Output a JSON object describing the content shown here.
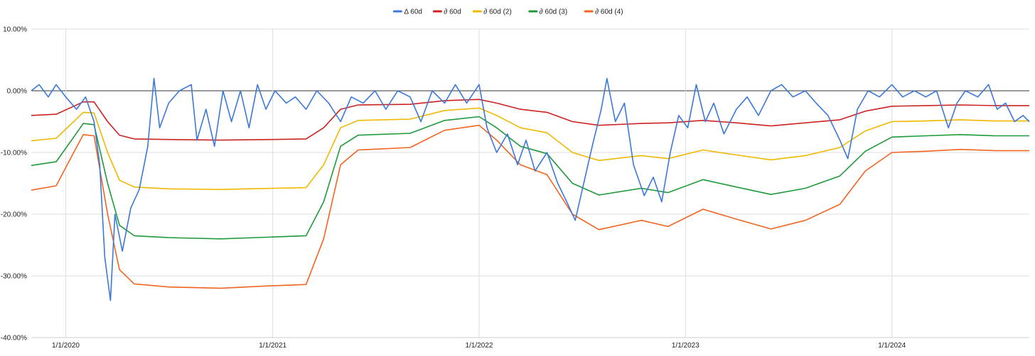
{
  "chart_data": {
    "type": "line",
    "title": "",
    "xlabel": "",
    "ylabel": "",
    "ylim": [
      -0.4,
      0.1
    ],
    "xlim": [
      "2019-11-01",
      "2024-08-31"
    ],
    "grid": true,
    "legend_position": "top-center",
    "y_ticks": [
      "10.00%",
      "0.00%",
      "-10.00%",
      "-20.00%",
      "-30.00%",
      "-40.00%"
    ],
    "y_tick_values": [
      0.1,
      0.0,
      -0.1,
      -0.2,
      -0.3,
      -0.4
    ],
    "x_ticks": [
      "1/1/2020",
      "1/1/2021",
      "1/1/2022",
      "1/1/2023",
      "1/1/2024"
    ],
    "x_tick_dates": [
      "2020-01-01",
      "2021-01-01",
      "2022-01-01",
      "2023-01-01",
      "2024-01-01"
    ],
    "zero_line": true,
    "series": [
      {
        "name": "Δ 60d",
        "color": "#3b78d8",
        "points": [
          [
            "2019-11-01",
            0.0
          ],
          [
            "2019-11-15",
            0.01
          ],
          [
            "2019-12-01",
            -0.01
          ],
          [
            "2019-12-15",
            0.01
          ],
          [
            "2020-01-01",
            -0.01
          ],
          [
            "2020-01-20",
            -0.03
          ],
          [
            "2020-02-05",
            -0.01
          ],
          [
            "2020-02-20",
            -0.05
          ],
          [
            "2020-03-01",
            -0.12
          ],
          [
            "2020-03-10",
            -0.27
          ],
          [
            "2020-03-20",
            -0.34
          ],
          [
            "2020-03-28",
            -0.2
          ],
          [
            "2020-04-10",
            -0.26
          ],
          [
            "2020-04-25",
            -0.19
          ],
          [
            "2020-05-10",
            -0.16
          ],
          [
            "2020-05-25",
            -0.09
          ],
          [
            "2020-06-05",
            0.02
          ],
          [
            "2020-06-15",
            -0.06
          ],
          [
            "2020-07-01",
            -0.02
          ],
          [
            "2020-07-20",
            0.0
          ],
          [
            "2020-08-10",
            0.01
          ],
          [
            "2020-08-20",
            -0.08
          ],
          [
            "2020-09-05",
            -0.03
          ],
          [
            "2020-09-20",
            -0.09
          ],
          [
            "2020-10-05",
            0.0
          ],
          [
            "2020-10-20",
            -0.05
          ],
          [
            "2020-11-05",
            0.0
          ],
          [
            "2020-11-20",
            -0.06
          ],
          [
            "2020-12-05",
            0.01
          ],
          [
            "2020-12-20",
            -0.03
          ],
          [
            "2021-01-05",
            0.0
          ],
          [
            "2021-01-25",
            -0.02
          ],
          [
            "2021-02-10",
            -0.01
          ],
          [
            "2021-03-01",
            -0.03
          ],
          [
            "2021-03-20",
            0.0
          ],
          [
            "2021-04-10",
            -0.02
          ],
          [
            "2021-05-01",
            -0.05
          ],
          [
            "2021-05-20",
            -0.01
          ],
          [
            "2021-06-10",
            -0.02
          ],
          [
            "2021-07-01",
            0.0
          ],
          [
            "2021-07-20",
            -0.03
          ],
          [
            "2021-08-10",
            0.0
          ],
          [
            "2021-09-01",
            -0.01
          ],
          [
            "2021-09-20",
            -0.05
          ],
          [
            "2021-10-10",
            0.0
          ],
          [
            "2021-11-01",
            -0.02
          ],
          [
            "2021-11-20",
            0.01
          ],
          [
            "2021-12-10",
            -0.02
          ],
          [
            "2022-01-01",
            0.01
          ],
          [
            "2022-01-15",
            -0.06
          ],
          [
            "2022-02-01",
            -0.1
          ],
          [
            "2022-02-20",
            -0.07
          ],
          [
            "2022-03-10",
            -0.12
          ],
          [
            "2022-03-25",
            -0.08
          ],
          [
            "2022-04-10",
            -0.13
          ],
          [
            "2022-05-01",
            -0.1
          ],
          [
            "2022-05-20",
            -0.15
          ],
          [
            "2022-06-05",
            -0.18
          ],
          [
            "2022-06-20",
            -0.21
          ],
          [
            "2022-07-05",
            -0.15
          ],
          [
            "2022-07-20",
            -0.09
          ],
          [
            "2022-08-05",
            -0.03
          ],
          [
            "2022-08-15",
            0.02
          ],
          [
            "2022-08-30",
            -0.05
          ],
          [
            "2022-09-15",
            -0.02
          ],
          [
            "2022-10-01",
            -0.12
          ],
          [
            "2022-10-20",
            -0.17
          ],
          [
            "2022-11-05",
            -0.14
          ],
          [
            "2022-11-20",
            -0.18
          ],
          [
            "2022-12-05",
            -0.1
          ],
          [
            "2022-12-20",
            -0.04
          ],
          [
            "2023-01-05",
            -0.06
          ],
          [
            "2023-01-20",
            0.01
          ],
          [
            "2023-02-05",
            -0.05
          ],
          [
            "2023-02-20",
            -0.02
          ],
          [
            "2023-03-10",
            -0.07
          ],
          [
            "2023-04-01",
            -0.03
          ],
          [
            "2023-04-20",
            -0.01
          ],
          [
            "2023-05-10",
            -0.04
          ],
          [
            "2023-06-01",
            0.0
          ],
          [
            "2023-06-20",
            0.01
          ],
          [
            "2023-07-10",
            -0.01
          ],
          [
            "2023-08-01",
            0.0
          ],
          [
            "2023-08-20",
            -0.02
          ],
          [
            "2023-09-10",
            -0.04
          ],
          [
            "2023-10-01",
            -0.08
          ],
          [
            "2023-10-15",
            -0.11
          ],
          [
            "2023-11-01",
            -0.03
          ],
          [
            "2023-11-20",
            0.0
          ],
          [
            "2023-12-10",
            -0.01
          ],
          [
            "2024-01-01",
            0.01
          ],
          [
            "2024-01-20",
            -0.01
          ],
          [
            "2024-02-10",
            0.0
          ],
          [
            "2024-03-01",
            -0.01
          ],
          [
            "2024-03-20",
            0.0
          ],
          [
            "2024-04-10",
            -0.06
          ],
          [
            "2024-04-25",
            -0.02
          ],
          [
            "2024-05-10",
            0.0
          ],
          [
            "2024-06-01",
            -0.01
          ],
          [
            "2024-06-20",
            0.01
          ],
          [
            "2024-07-05",
            -0.03
          ],
          [
            "2024-07-20",
            -0.02
          ],
          [
            "2024-08-05",
            -0.05
          ],
          [
            "2024-08-20",
            -0.04
          ],
          [
            "2024-08-31",
            -0.05
          ]
        ]
      },
      {
        "name": "∂ 60d",
        "color": "#cc2222",
        "points": [
          [
            "2019-11-01",
            -0.04
          ],
          [
            "2019-12-15",
            -0.038
          ],
          [
            "2020-01-15",
            -0.025
          ],
          [
            "2020-02-01",
            -0.018
          ],
          [
            "2020-02-20",
            -0.018
          ],
          [
            "2020-03-15",
            -0.05
          ],
          [
            "2020-04-05",
            -0.072
          ],
          [
            "2020-05-01",
            -0.078
          ],
          [
            "2020-07-01",
            -0.079
          ],
          [
            "2020-10-01",
            -0.08
          ],
          [
            "2021-01-01",
            -0.079
          ],
          [
            "2021-03-01",
            -0.078
          ],
          [
            "2021-04-01",
            -0.06
          ],
          [
            "2021-05-01",
            -0.03
          ],
          [
            "2021-06-01",
            -0.023
          ],
          [
            "2021-09-01",
            -0.022
          ],
          [
            "2021-11-01",
            -0.016
          ],
          [
            "2022-01-01",
            -0.014
          ],
          [
            "2022-02-01",
            -0.02
          ],
          [
            "2022-03-15",
            -0.03
          ],
          [
            "2022-05-01",
            -0.035
          ],
          [
            "2022-06-15",
            -0.05
          ],
          [
            "2022-08-01",
            -0.056
          ],
          [
            "2022-10-15",
            -0.053
          ],
          [
            "2022-12-01",
            -0.052
          ],
          [
            "2023-02-01",
            -0.048
          ],
          [
            "2023-04-01",
            -0.052
          ],
          [
            "2023-06-01",
            -0.057
          ],
          [
            "2023-08-01",
            -0.052
          ],
          [
            "2023-10-01",
            -0.047
          ],
          [
            "2023-11-15",
            -0.033
          ],
          [
            "2024-01-01",
            -0.025
          ],
          [
            "2024-03-01",
            -0.024
          ],
          [
            "2024-05-01",
            -0.023
          ],
          [
            "2024-07-01",
            -0.024
          ],
          [
            "2024-08-31",
            -0.024
          ]
        ]
      },
      {
        "name": "∂ 60d (2)",
        "color": "#f1b800",
        "points": [
          [
            "2019-11-01",
            -0.081
          ],
          [
            "2019-12-15",
            -0.077
          ],
          [
            "2020-01-15",
            -0.05
          ],
          [
            "2020-02-01",
            -0.035
          ],
          [
            "2020-02-20",
            -0.036
          ],
          [
            "2020-03-15",
            -0.1
          ],
          [
            "2020-04-05",
            -0.145
          ],
          [
            "2020-05-01",
            -0.156
          ],
          [
            "2020-07-01",
            -0.159
          ],
          [
            "2020-10-01",
            -0.16
          ],
          [
            "2021-01-01",
            -0.158
          ],
          [
            "2021-03-01",
            -0.157
          ],
          [
            "2021-04-01",
            -0.12
          ],
          [
            "2021-05-01",
            -0.06
          ],
          [
            "2021-06-01",
            -0.048
          ],
          [
            "2021-09-01",
            -0.046
          ],
          [
            "2021-11-01",
            -0.032
          ],
          [
            "2022-01-01",
            -0.028
          ],
          [
            "2022-02-01",
            -0.04
          ],
          [
            "2022-03-15",
            -0.06
          ],
          [
            "2022-05-01",
            -0.068
          ],
          [
            "2022-06-15",
            -0.1
          ],
          [
            "2022-08-01",
            -0.113
          ],
          [
            "2022-10-15",
            -0.105
          ],
          [
            "2022-12-01",
            -0.11
          ],
          [
            "2023-02-01",
            -0.096
          ],
          [
            "2023-04-01",
            -0.104
          ],
          [
            "2023-06-01",
            -0.112
          ],
          [
            "2023-08-01",
            -0.105
          ],
          [
            "2023-10-01",
            -0.092
          ],
          [
            "2023-11-15",
            -0.065
          ],
          [
            "2024-01-01",
            -0.05
          ],
          [
            "2024-03-01",
            -0.049
          ],
          [
            "2024-05-01",
            -0.047
          ],
          [
            "2024-07-01",
            -0.049
          ],
          [
            "2024-08-31",
            -0.049
          ]
        ]
      },
      {
        "name": "∂ 60d (3)",
        "color": "#1f9a3a",
        "points": [
          [
            "2019-11-01",
            -0.121
          ],
          [
            "2019-12-15",
            -0.115
          ],
          [
            "2020-01-15",
            -0.075
          ],
          [
            "2020-02-01",
            -0.053
          ],
          [
            "2020-02-20",
            -0.055
          ],
          [
            "2020-03-15",
            -0.15
          ],
          [
            "2020-04-05",
            -0.218
          ],
          [
            "2020-05-01",
            -0.235
          ],
          [
            "2020-07-01",
            -0.238
          ],
          [
            "2020-10-01",
            -0.24
          ],
          [
            "2021-01-01",
            -0.237
          ],
          [
            "2021-03-01",
            -0.235
          ],
          [
            "2021-04-01",
            -0.18
          ],
          [
            "2021-05-01",
            -0.09
          ],
          [
            "2021-06-01",
            -0.072
          ],
          [
            "2021-09-01",
            -0.069
          ],
          [
            "2021-11-01",
            -0.048
          ],
          [
            "2022-01-01",
            -0.042
          ],
          [
            "2022-02-01",
            -0.06
          ],
          [
            "2022-03-15",
            -0.09
          ],
          [
            "2022-05-01",
            -0.102
          ],
          [
            "2022-06-15",
            -0.15
          ],
          [
            "2022-08-01",
            -0.169
          ],
          [
            "2022-10-15",
            -0.158
          ],
          [
            "2022-12-01",
            -0.165
          ],
          [
            "2023-02-01",
            -0.144
          ],
          [
            "2023-04-01",
            -0.156
          ],
          [
            "2023-06-01",
            -0.168
          ],
          [
            "2023-08-01",
            -0.158
          ],
          [
            "2023-10-01",
            -0.138
          ],
          [
            "2023-11-15",
            -0.098
          ],
          [
            "2024-01-01",
            -0.075
          ],
          [
            "2024-03-01",
            -0.073
          ],
          [
            "2024-05-01",
            -0.071
          ],
          [
            "2024-07-01",
            -0.073
          ],
          [
            "2024-08-31",
            -0.073
          ]
        ]
      },
      {
        "name": "∂ 60d (4)",
        "color": "#f16521",
        "points": [
          [
            "2019-11-01",
            -0.161
          ],
          [
            "2019-12-15",
            -0.154
          ],
          [
            "2020-01-15",
            -0.1
          ],
          [
            "2020-02-01",
            -0.071
          ],
          [
            "2020-02-20",
            -0.073
          ],
          [
            "2020-03-15",
            -0.2
          ],
          [
            "2020-04-05",
            -0.29
          ],
          [
            "2020-05-01",
            -0.313
          ],
          [
            "2020-07-01",
            -0.318
          ],
          [
            "2020-10-01",
            -0.32
          ],
          [
            "2021-01-01",
            -0.316
          ],
          [
            "2021-03-01",
            -0.314
          ],
          [
            "2021-04-01",
            -0.24
          ],
          [
            "2021-05-01",
            -0.12
          ],
          [
            "2021-06-01",
            -0.096
          ],
          [
            "2021-09-01",
            -0.092
          ],
          [
            "2021-11-01",
            -0.064
          ],
          [
            "2022-01-01",
            -0.056
          ],
          [
            "2022-02-01",
            -0.08
          ],
          [
            "2022-03-15",
            -0.12
          ],
          [
            "2022-05-01",
            -0.136
          ],
          [
            "2022-06-15",
            -0.2
          ],
          [
            "2022-08-01",
            -0.225
          ],
          [
            "2022-10-15",
            -0.21
          ],
          [
            "2022-12-01",
            -0.22
          ],
          [
            "2023-02-01",
            -0.192
          ],
          [
            "2023-04-01",
            -0.208
          ],
          [
            "2023-06-01",
            -0.224
          ],
          [
            "2023-08-01",
            -0.21
          ],
          [
            "2023-10-01",
            -0.184
          ],
          [
            "2023-11-15",
            -0.13
          ],
          [
            "2024-01-01",
            -0.1
          ],
          [
            "2024-03-01",
            -0.098
          ],
          [
            "2024-05-01",
            -0.095
          ],
          [
            "2024-07-01",
            -0.097
          ],
          [
            "2024-08-31",
            -0.097
          ]
        ]
      }
    ]
  }
}
